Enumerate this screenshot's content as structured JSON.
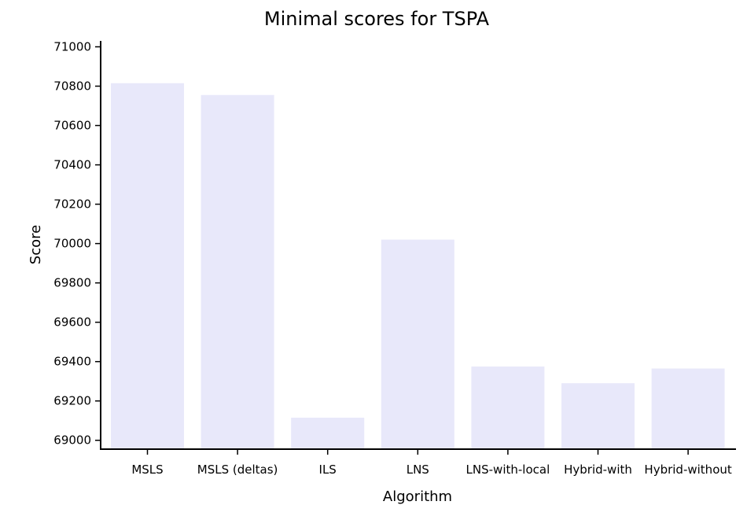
{
  "chart_data": {
    "type": "bar",
    "title": "Minimal scores for TSPA",
    "xlabel": "Algorithm",
    "ylabel": "Score",
    "categories": [
      "MSLS",
      "MSLS (deltas)",
      "ILS",
      "LNS",
      "LNS-with-local",
      "Hybrid-with",
      "Hybrid-without"
    ],
    "values": [
      70815,
      70755,
      69115,
      70020,
      69375,
      69290,
      69365
    ],
    "ylim": [
      68955,
      71030
    ],
    "yticks": [
      69000,
      69200,
      69400,
      69600,
      69800,
      70000,
      70200,
      70400,
      70600,
      70800,
      71000
    ],
    "grid": false,
    "legend": "none",
    "colors": {
      "bar": "#e8e8fa",
      "axis": "#000000",
      "text": "#000000"
    }
  }
}
